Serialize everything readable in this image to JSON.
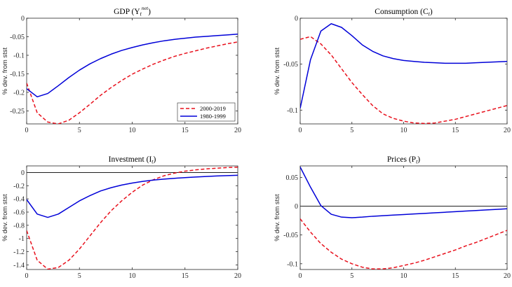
{
  "chart_data": [
    {
      "type": "line",
      "title": "GDP (Y",
      "title_sub": "t",
      "title_sup": "net",
      "title_end": ")",
      "xlabel": "",
      "ylabel": "% dev. from stst",
      "xlim": [
        0,
        20
      ],
      "ylim": [
        -0.285,
        0
      ],
      "xticks": [
        0,
        5,
        10,
        15,
        20
      ],
      "yticks": [
        0,
        -0.05,
        -0.1,
        -0.15,
        -0.2,
        -0.25
      ],
      "ytick_labels": [
        "0",
        "-0.05",
        "-0.1",
        "-0.15",
        "-0.2",
        "-0.25"
      ],
      "zero_line": false,
      "legend": {
        "position": "bottom-right",
        "entries": [
          "2000-2019",
          "1980-1999"
        ]
      },
      "series": [
        {
          "name": "2000-2019",
          "color": "#e8101c",
          "style": "dashed",
          "x": [
            0,
            1,
            2,
            3,
            4,
            5,
            6,
            7,
            8,
            9,
            10,
            11,
            12,
            13,
            14,
            15,
            16,
            17,
            18,
            19,
            20
          ],
          "y": [
            -0.175,
            -0.255,
            -0.28,
            -0.285,
            -0.275,
            -0.255,
            -0.232,
            -0.208,
            -0.187,
            -0.168,
            -0.151,
            -0.137,
            -0.124,
            -0.113,
            -0.103,
            -0.095,
            -0.088,
            -0.081,
            -0.075,
            -0.069,
            -0.064
          ]
        },
        {
          "name": "1980-1999",
          "color": "#0000d8",
          "style": "solid",
          "x": [
            0,
            1,
            2,
            3,
            4,
            5,
            6,
            7,
            8,
            9,
            10,
            11,
            12,
            13,
            14,
            15,
            16,
            17,
            18,
            19,
            20
          ],
          "y": [
            -0.19,
            -0.212,
            -0.203,
            -0.182,
            -0.16,
            -0.14,
            -0.123,
            -0.109,
            -0.097,
            -0.087,
            -0.079,
            -0.072,
            -0.066,
            -0.061,
            -0.057,
            -0.054,
            -0.051,
            -0.049,
            -0.047,
            -0.045,
            -0.043
          ]
        }
      ]
    },
    {
      "type": "line",
      "title": "Consumption (C",
      "title_sub": "t",
      "title_sup": "",
      "title_end": ")",
      "xlabel": "",
      "ylabel": "% dev. from stst",
      "xlim": [
        0,
        20
      ],
      "ylim": [
        -0.115,
        0
      ],
      "xticks": [
        0,
        5,
        10,
        15,
        20
      ],
      "yticks": [
        0,
        -0.05,
        -0.1
      ],
      "ytick_labels": [
        "0",
        "-0.05",
        "-0.1"
      ],
      "zero_line": false,
      "series": [
        {
          "name": "2000-2019",
          "color": "#e8101c",
          "style": "dashed",
          "x": [
            0,
            1,
            2,
            3,
            4,
            5,
            6,
            7,
            8,
            9,
            10,
            11,
            12,
            13,
            14,
            15,
            16,
            17,
            18,
            19,
            20
          ],
          "y": [
            -0.023,
            -0.02,
            -0.028,
            -0.04,
            -0.055,
            -0.07,
            -0.083,
            -0.095,
            -0.104,
            -0.109,
            -0.112,
            -0.114,
            -0.1145,
            -0.114,
            -0.112,
            -0.11,
            -0.107,
            -0.104,
            -0.101,
            -0.098,
            -0.095
          ]
        },
        {
          "name": "1980-1999",
          "color": "#0000d8",
          "style": "solid",
          "x": [
            0,
            1,
            2,
            3,
            4,
            5,
            6,
            7,
            8,
            9,
            10,
            11,
            12,
            13,
            14,
            15,
            16,
            17,
            18,
            19,
            20
          ],
          "y": [
            -0.098,
            -0.045,
            -0.014,
            -0.006,
            -0.01,
            -0.019,
            -0.029,
            -0.036,
            -0.041,
            -0.044,
            -0.046,
            -0.047,
            -0.048,
            -0.0485,
            -0.049,
            -0.049,
            -0.049,
            -0.0485,
            -0.048,
            -0.0475,
            -0.047
          ]
        }
      ]
    },
    {
      "type": "line",
      "title": "Investment (I",
      "title_sub": "t",
      "title_sup": "",
      "title_end": ")",
      "xlabel": "",
      "ylabel": "% dev. from stst",
      "xlim": [
        0,
        20
      ],
      "ylim": [
        -1.47,
        0.1
      ],
      "xticks": [
        0,
        5,
        10,
        15,
        20
      ],
      "yticks": [
        0,
        -0.2,
        -0.4,
        -0.6,
        -0.8,
        -1,
        -1.2,
        -1.4
      ],
      "ytick_labels": [
        "0",
        "-0.2",
        "-0.4",
        "-0.6",
        "-0.8",
        "-1",
        "-1.2",
        "-1.4"
      ],
      "zero_line": true,
      "series": [
        {
          "name": "2000-2019",
          "color": "#e8101c",
          "style": "dashed",
          "x": [
            0,
            1,
            2,
            3,
            4,
            5,
            6,
            7,
            8,
            9,
            10,
            11,
            12,
            13,
            14,
            15,
            16,
            17,
            18,
            19,
            20
          ],
          "y": [
            -0.88,
            -1.33,
            -1.465,
            -1.44,
            -1.33,
            -1.16,
            -0.96,
            -0.76,
            -0.58,
            -0.43,
            -0.3,
            -0.19,
            -0.11,
            -0.05,
            -0.01,
            0.02,
            0.04,
            0.055,
            0.065,
            0.075,
            0.08
          ]
        },
        {
          "name": "1980-1999",
          "color": "#0000d8",
          "style": "solid",
          "x": [
            0,
            1,
            2,
            3,
            4,
            5,
            6,
            7,
            8,
            9,
            10,
            11,
            12,
            13,
            14,
            15,
            16,
            17,
            18,
            19,
            20
          ],
          "y": [
            -0.41,
            -0.63,
            -0.68,
            -0.63,
            -0.53,
            -0.43,
            -0.35,
            -0.28,
            -0.23,
            -0.19,
            -0.16,
            -0.135,
            -0.115,
            -0.1,
            -0.088,
            -0.077,
            -0.068,
            -0.06,
            -0.053,
            -0.047,
            -0.042
          ]
        }
      ]
    },
    {
      "type": "line",
      "title": "Prices (P",
      "title_sub": "t",
      "title_sup": "",
      "title_end": ")",
      "xlabel": "",
      "ylabel": "% dev. from stst",
      "xlim": [
        0,
        20
      ],
      "ylim": [
        -0.11,
        0.07
      ],
      "xticks": [
        0,
        5,
        10,
        15,
        20
      ],
      "yticks": [
        0.05,
        0,
        -0.05,
        -0.1
      ],
      "ytick_labels": [
        "0.05",
        "0",
        "-0.05",
        "-0.1"
      ],
      "zero_line": true,
      "series": [
        {
          "name": "2000-2019",
          "color": "#e8101c",
          "style": "dashed",
          "x": [
            0,
            1,
            2,
            3,
            4,
            5,
            6,
            7,
            8,
            9,
            10,
            11,
            12,
            13,
            14,
            15,
            16,
            17,
            18,
            19,
            20
          ],
          "y": [
            -0.022,
            -0.045,
            -0.065,
            -0.08,
            -0.092,
            -0.1,
            -0.106,
            -0.109,
            -0.109,
            -0.107,
            -0.103,
            -0.099,
            -0.094,
            -0.088,
            -0.082,
            -0.076,
            -0.069,
            -0.063,
            -0.056,
            -0.049,
            -0.042
          ]
        },
        {
          "name": "1980-1999",
          "color": "#0000d8",
          "style": "solid",
          "x": [
            0,
            1,
            2,
            3,
            4,
            5,
            6,
            7,
            8,
            9,
            10,
            11,
            12,
            13,
            14,
            15,
            16,
            17,
            18,
            19,
            20
          ],
          "y": [
            0.068,
            0.033,
            0.001,
            -0.014,
            -0.019,
            -0.02,
            -0.019,
            -0.0175,
            -0.0165,
            -0.0155,
            -0.0145,
            -0.0135,
            -0.0125,
            -0.0115,
            -0.0105,
            -0.0095,
            -0.0085,
            -0.0075,
            -0.0065,
            -0.0055,
            -0.0045
          ]
        }
      ]
    }
  ]
}
